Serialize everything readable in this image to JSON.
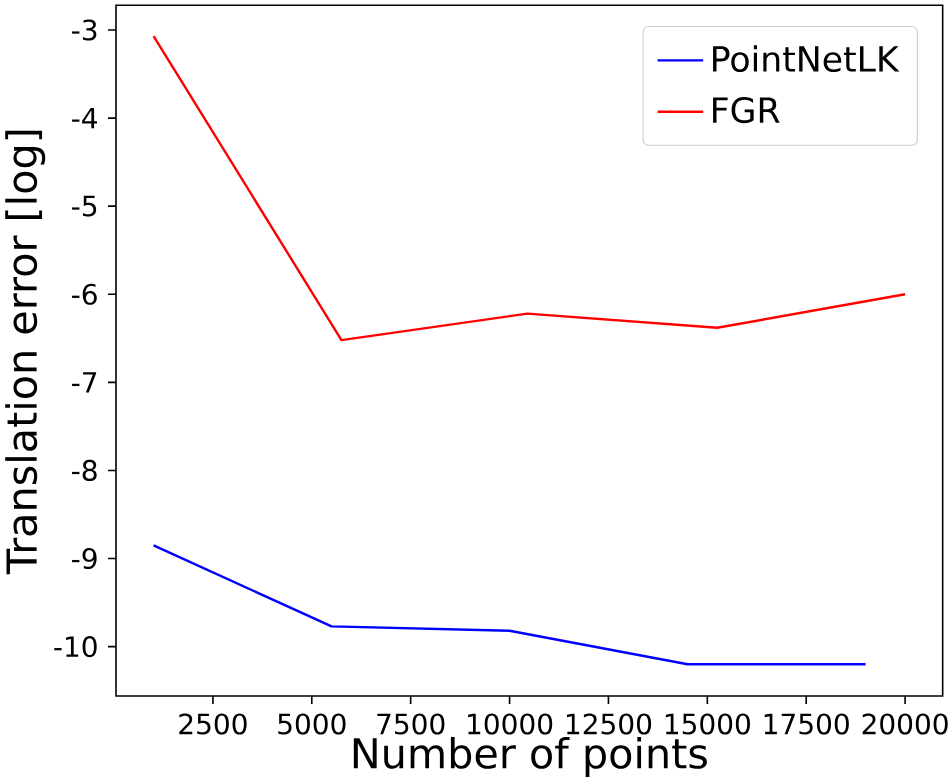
{
  "chart_data": {
    "type": "line",
    "xlabel": "Number of points",
    "ylabel": "Translation error [log]",
    "xlim": [
      50,
      20950
    ],
    "ylim": [
      -10.56,
      -2.72
    ],
    "xticks": [
      2500,
      5000,
      7500,
      10000,
      12500,
      15000,
      17500,
      20000
    ],
    "yticks": [
      -10,
      -9,
      -8,
      -7,
      -6,
      -5,
      -4,
      -3
    ],
    "series": [
      {
        "name": "PointNetLK",
        "color": "#0000ff",
        "x": [
          1000,
          5500,
          10000,
          14500,
          19000
        ],
        "values": [
          -8.85,
          -9.77,
          -9.82,
          -10.2,
          -10.2
        ]
      },
      {
        "name": "FGR",
        "color": "#ff0000",
        "x": [
          1000,
          5750,
          10450,
          15250,
          20000
        ],
        "values": [
          -3.07,
          -6.52,
          -6.22,
          -6.38,
          -6.0
        ]
      }
    ],
    "legend": "top right",
    "grid": false,
    "marker": "none",
    "line_style": "solid"
  }
}
